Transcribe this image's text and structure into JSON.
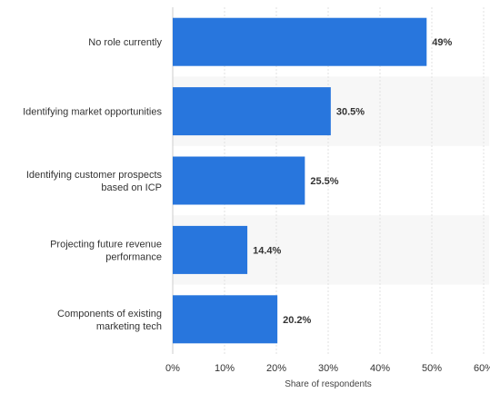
{
  "chart_data": {
    "type": "bar",
    "orientation": "horizontal",
    "categories": [
      [
        "No role currently"
      ],
      [
        "Identifying market opportunities"
      ],
      [
        "Identifying customer prospects",
        "based on ICP"
      ],
      [
        "Projecting future revenue",
        "performance"
      ],
      [
        "Components of existing",
        "marketing tech"
      ]
    ],
    "values": [
      49,
      30.5,
      25.5,
      14.4,
      20.2
    ],
    "value_labels": [
      "49%",
      "30.5%",
      "25.5%",
      "14.4%",
      "20.2%"
    ],
    "xlim": [
      0,
      60
    ],
    "ticks": [
      0,
      10,
      20,
      30,
      40,
      50,
      60
    ],
    "tick_labels": [
      "0%",
      "10%",
      "20%",
      "30%",
      "40%",
      "50%",
      "60%"
    ],
    "xlabel": "Share of respondents",
    "ylabel": "",
    "title": "",
    "bar_color": "#2876dd",
    "band_color": "#f7f7f7",
    "grid": true
  }
}
